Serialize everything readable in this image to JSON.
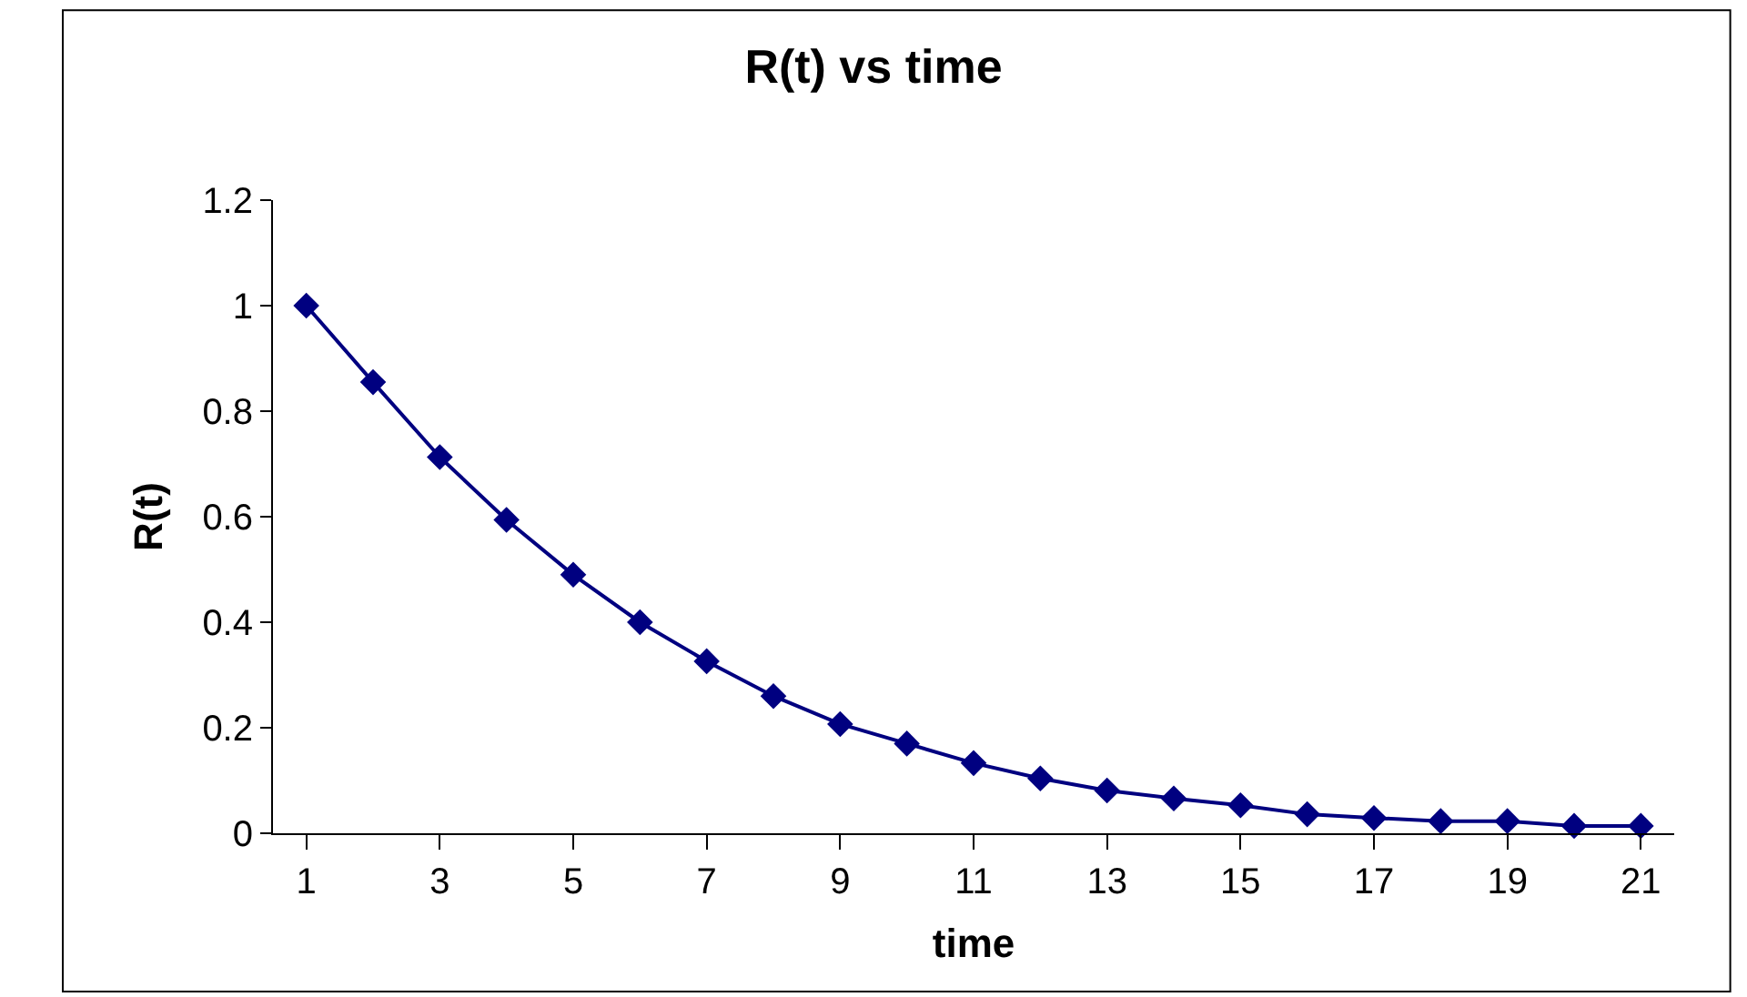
{
  "chart_data": {
    "type": "line",
    "title": "R(t) vs time",
    "xlabel": "time",
    "ylabel": "R(t)",
    "x": [
      1,
      2,
      3,
      4,
      5,
      6,
      7,
      8,
      9,
      10,
      11,
      12,
      13,
      14,
      15,
      16,
      17,
      18,
      19,
      20,
      21
    ],
    "xlim": [
      0.5,
      21.5
    ],
    "xticks": [
      1,
      3,
      5,
      7,
      9,
      11,
      13,
      15,
      17,
      19,
      21
    ],
    "series": [
      {
        "color": "#000080",
        "values": [
          1.0,
          0.855,
          0.713,
          0.594,
          0.49,
          0.4,
          0.326,
          0.26,
          0.207,
          0.17,
          0.133,
          0.104,
          0.081,
          0.066,
          0.053,
          0.036,
          0.029,
          0.023,
          0.023,
          0.014,
          0.014
        ]
      }
    ],
    "ylim": [
      0,
      1.2
    ],
    "yticks": [
      0,
      0.2,
      0.4,
      0.6,
      0.8,
      1,
      1.2
    ],
    "marker": "diamond",
    "line_style": "solid",
    "legend": false
  }
}
